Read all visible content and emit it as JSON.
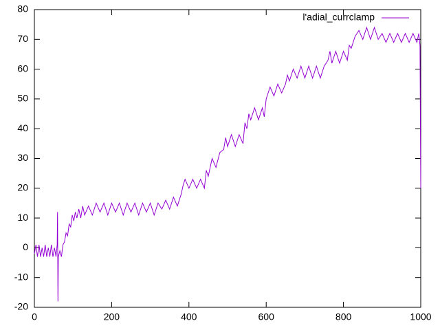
{
  "chart_data": {
    "type": "line",
    "x": [
      0,
      4,
      8,
      12,
      16,
      20,
      24,
      28,
      32,
      36,
      40,
      44,
      48,
      52,
      56,
      59,
      60,
      61,
      62,
      66,
      70,
      74,
      78,
      82,
      86,
      90,
      94,
      98,
      102,
      106,
      110,
      115,
      120,
      125,
      130,
      140,
      150,
      160,
      170,
      180,
      190,
      200,
      210,
      220,
      230,
      240,
      250,
      260,
      270,
      280,
      290,
      300,
      310,
      320,
      330,
      340,
      350,
      360,
      370,
      380,
      385,
      390,
      400,
      410,
      420,
      430,
      440,
      445,
      450,
      460,
      470,
      480,
      490,
      495,
      500,
      510,
      520,
      530,
      540,
      545,
      550,
      555,
      560,
      570,
      580,
      590,
      595,
      600,
      605,
      610,
      620,
      630,
      640,
      650,
      655,
      660,
      670,
      680,
      690,
      700,
      710,
      720,
      730,
      740,
      750,
      760,
      765,
      770,
      780,
      790,
      800,
      810,
      815,
      820,
      830,
      840,
      850,
      860,
      870,
      880,
      890,
      900,
      910,
      920,
      930,
      940,
      950,
      960,
      970,
      980,
      990,
      995,
      998,
      1000
    ],
    "series": [
      {
        "name": "l'adial_currclamp",
        "color": "#9400d3",
        "values": [
          -2,
          1,
          -3,
          1,
          -3,
          0,
          -3,
          1,
          -3,
          0,
          -3,
          1,
          -3,
          0,
          -3,
          1,
          12,
          -18,
          -3,
          -1,
          -3,
          1,
          2,
          5,
          4,
          8,
          7,
          11,
          9,
          12,
          10,
          13,
          10,
          14,
          11,
          14,
          11,
          15,
          12,
          15,
          11,
          15,
          12,
          15,
          11,
          15,
          12,
          15,
          11,
          15,
          12,
          15,
          11,
          15,
          13,
          16,
          13,
          17,
          14,
          18,
          21,
          23,
          20,
          23,
          20,
          23,
          20,
          26,
          24,
          30,
          27,
          32,
          33,
          37,
          34,
          38,
          34,
          38,
          35,
          42,
          40,
          45,
          43,
          47,
          43,
          47,
          44,
          50,
          52,
          54,
          51,
          55,
          52,
          55,
          58,
          56,
          60,
          57,
          61,
          57,
          61,
          57,
          61,
          57,
          61,
          63,
          66,
          62,
          66,
          62,
          66,
          63,
          68,
          67,
          71,
          73,
          70,
          74,
          70,
          74,
          70,
          72,
          69,
          72,
          69,
          72,
          69,
          72,
          69,
          72,
          69,
          72,
          68,
          20
        ]
      }
    ],
    "xlim": [
      0,
      1000
    ],
    "xticks": [
      0,
      200,
      400,
      600,
      800,
      1000
    ],
    "ylim": [
      -20,
      80
    ],
    "yticks": [
      -20,
      -10,
      0,
      10,
      20,
      30,
      40,
      50,
      60,
      70,
      80
    ],
    "legend": "top-right"
  }
}
